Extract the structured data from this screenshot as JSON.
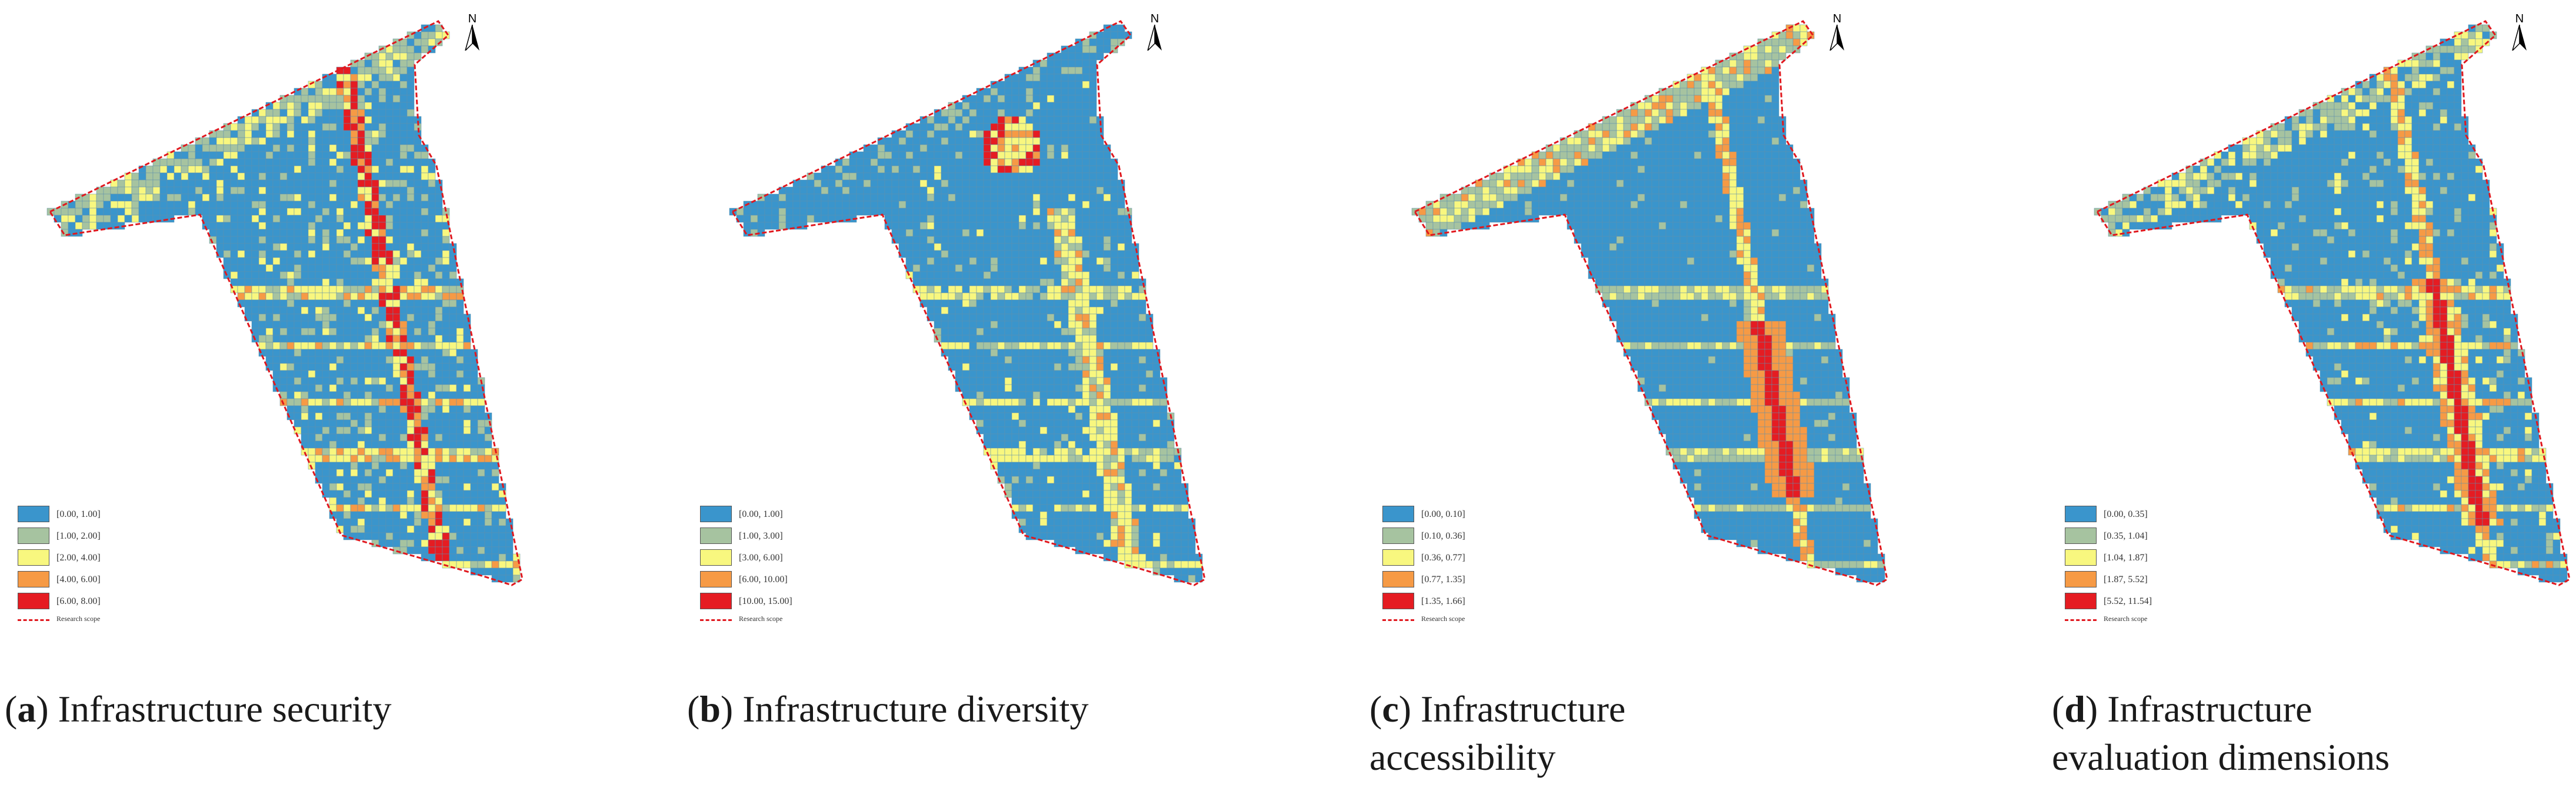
{
  "colors": {
    "class1": "#3a95cc",
    "class2": "#a6c3a0",
    "class3": "#f8f77f",
    "class4": "#f69a45",
    "class5": "#e51c22",
    "scope": "#e0181e"
  },
  "north_letter": "N",
  "scope_label": "Research scope",
  "panels": [
    {
      "caption_letter": "a",
      "caption_text": "Infrastructure security",
      "legend": [
        "[0.00, 1.00]",
        "[1.00, 2.00]",
        "[2.00, 4.00]",
        "[4.00, 6.00]",
        "[6.00, 8.00]"
      ]
    },
    {
      "caption_letter": "b",
      "caption_text": "Infrastructure diversity",
      "legend": [
        "[0.00, 1.00]",
        "[1.00, 3.00]",
        "[3.00, 6.00]",
        "[6.00, 10.00]",
        "[10.00, 15.00]"
      ]
    },
    {
      "caption_letter": "c",
      "caption_text": "Infrastructure\naccessibility",
      "legend": [
        "[0.00, 0.10]",
        "[0.10, 0.36]",
        "[0.36, 0.77]",
        "[0.77, 1.35]",
        "[1.35, 1.66]"
      ]
    },
    {
      "caption_letter": "d",
      "caption_text": "Infrastructure\nevaluation dimensions",
      "legend": [
        "[0.00, 0.35]",
        "[0.35, 1.04]",
        "[1.04, 1.87]",
        "[1.87, 5.52]",
        "[5.52, 11.54]"
      ]
    }
  ]
}
